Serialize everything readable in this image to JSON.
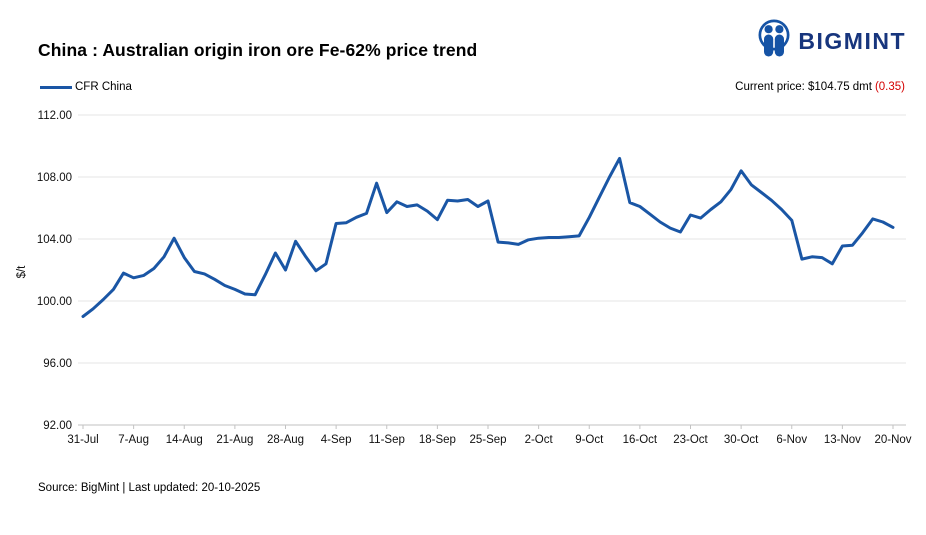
{
  "header": {
    "title": "China : Australian origin iron ore Fe-62% price trend",
    "logo_text": "BIGMINT"
  },
  "legend": {
    "series_label": "CFR China"
  },
  "current_price": {
    "label": "Current price: $104.75 dmt",
    "change": "(0.35)"
  },
  "footer": {
    "source_text": "Source: BigMint | Last updated: 20-10-2025"
  },
  "colors": {
    "line_blue": "#1a56a5",
    "logo_blue": "#1553a5",
    "logo_text_navy": "#17357d",
    "negative_red": "#d40000",
    "gridline_gray": "#e4e4e4",
    "axis_gray": "#c2c2c2"
  },
  "chart_data": {
    "type": "line",
    "title": "China : Australian origin iron ore Fe-62% price trend",
    "xlabel": "",
    "ylabel": "$/t",
    "ylim": [
      92,
      112
    ],
    "ytick_step": 4,
    "ytick_labels": [
      "92.00",
      "96.00",
      "100.00",
      "104.00",
      "108.00",
      "112.00"
    ],
    "xtick_labels": [
      "31-Jul",
      "7-Aug",
      "14-Aug",
      "21-Aug",
      "28-Aug",
      "4-Sep",
      "11-Sep",
      "18-Sep",
      "25-Sep",
      "2-Oct",
      "9-Oct",
      "16-Oct",
      "23-Oct",
      "30-Oct",
      "6-Nov",
      "13-Nov",
      "20-Nov"
    ],
    "xtick_interval": 5,
    "grid": "horizontal",
    "legend_position": "top-left",
    "series": [
      {
        "name": "CFR China",
        "color": "#1a56a5",
        "values": [
          99.0,
          99.5,
          100.1,
          100.75,
          101.8,
          101.5,
          101.65,
          102.1,
          102.85,
          104.05,
          102.8,
          101.9,
          101.75,
          101.4,
          101.0,
          100.75,
          100.45,
          100.4,
          101.7,
          103.1,
          102.0,
          103.85,
          102.85,
          101.95,
          102.4,
          105.0,
          105.05,
          105.4,
          105.65,
          107.6,
          105.7,
          106.4,
          106.1,
          106.2,
          105.8,
          105.25,
          106.5,
          106.45,
          106.55,
          106.1,
          106.45,
          103.8,
          103.75,
          103.65,
          103.95,
          104.05,
          104.1,
          104.1,
          104.15,
          104.2,
          105.4,
          106.7,
          108.0,
          109.2,
          106.35,
          106.1,
          105.6,
          105.1,
          104.7,
          104.45,
          105.55,
          105.35,
          105.9,
          106.4,
          107.2,
          108.4,
          107.5,
          107.0,
          106.5,
          105.9,
          105.2,
          102.7,
          102.85,
          102.8,
          102.4,
          103.55,
          103.6,
          104.4,
          105.3,
          105.1,
          104.75
        ]
      }
    ]
  }
}
